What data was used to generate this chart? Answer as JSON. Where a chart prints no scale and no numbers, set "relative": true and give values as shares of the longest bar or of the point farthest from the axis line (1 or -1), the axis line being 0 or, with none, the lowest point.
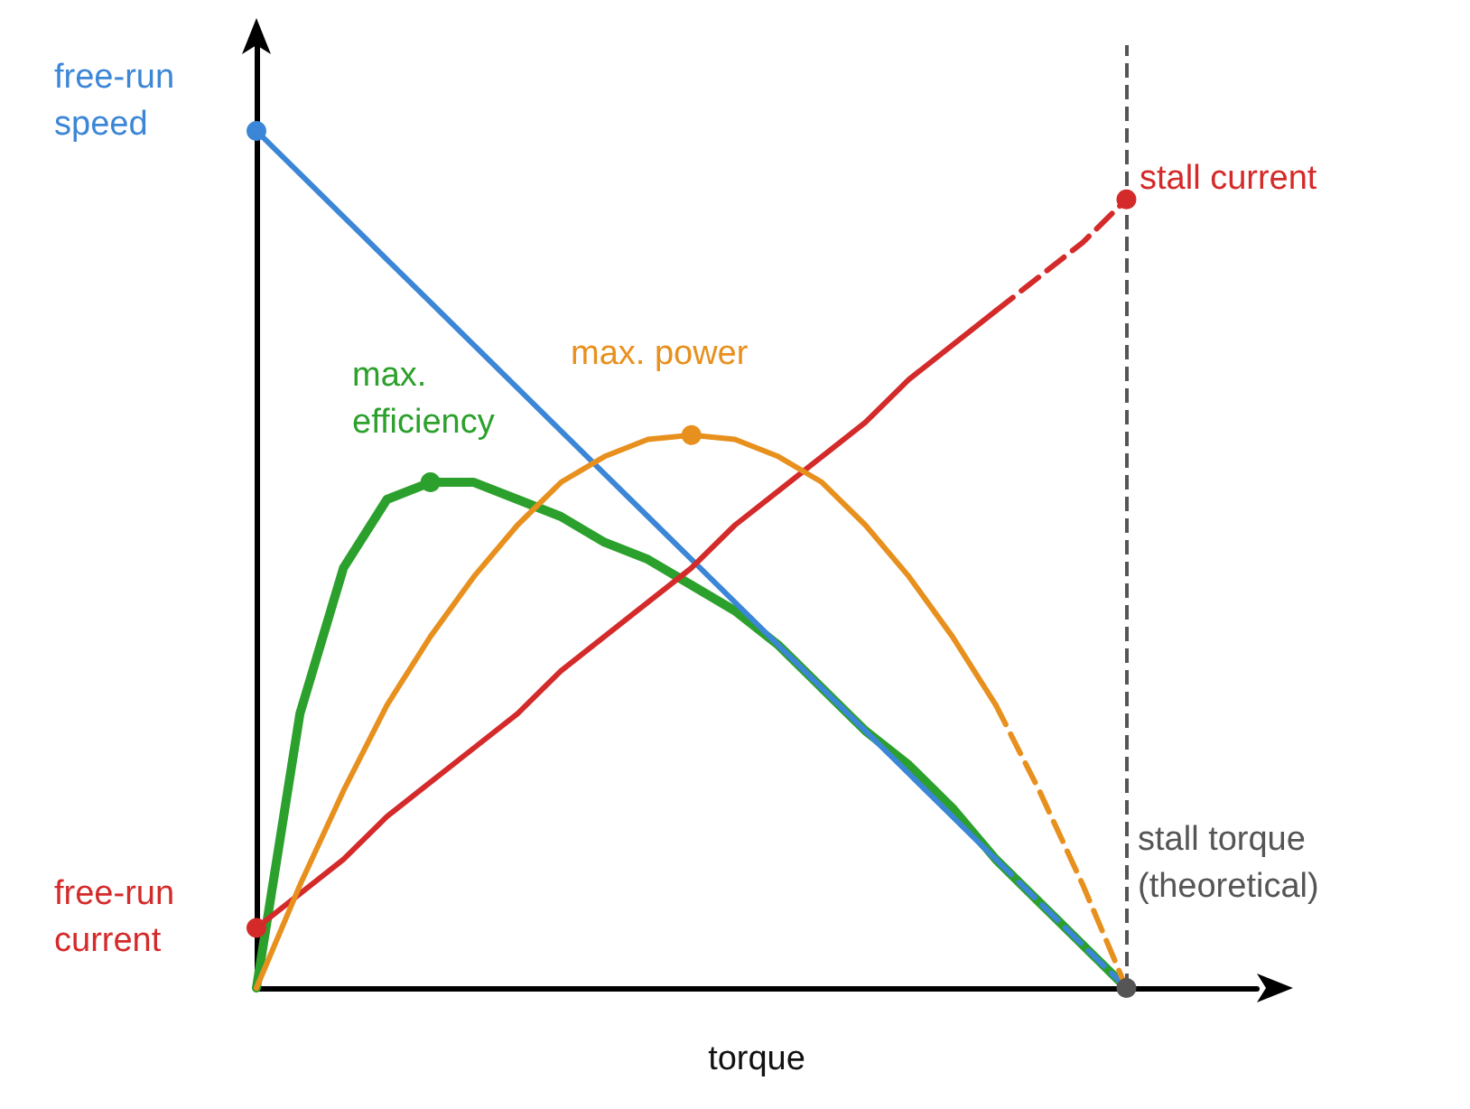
{
  "chart_data": {
    "type": "line",
    "relative": true,
    "xlabel": "torque",
    "grid": false,
    "categories": [
      null,
      null,
      null,
      null,
      null,
      null,
      null,
      null,
      null,
      null,
      null,
      null,
      null,
      null,
      null,
      null,
      null,
      null,
      null,
      null,
      null,
      null,
      null,
      null
    ],
    "series": [
      {
        "color": "#2ca02c",
        "line_style": "solid",
        "values": [
          0,
          0.32,
          0.49,
          0.57,
          0.59,
          0.59,
          0.57,
          0.55,
          0.52,
          0.5,
          0.47,
          0.44,
          0.4,
          0.35,
          0.3,
          0.26,
          0.21,
          0.15,
          0.1,
          0.05,
          0,
          null,
          null,
          null
        ]
      },
      {
        "color": "#3b86d6",
        "line_style": "solid",
        "values": [
          1,
          0.95,
          0.9,
          0.85,
          0.8,
          0.75,
          0.7,
          0.65,
          0.6,
          0.55,
          0.5,
          0.45,
          0.4,
          0.35,
          0.3,
          0.25,
          0.2,
          0.15,
          null,
          null,
          null,
          null,
          null,
          null
        ]
      },
      {
        "color": "#3b86d6",
        "line_style": "dashed",
        "values": [
          null,
          null,
          null,
          null,
          null,
          null,
          null,
          null,
          null,
          null,
          null,
          null,
          null,
          null,
          null,
          null,
          null,
          0.15,
          0.1,
          0.05,
          0,
          null,
          null,
          null
        ]
      },
      {
        "color": "#d42a2a",
        "line_style": "solid",
        "values": [
          0.07,
          0.11,
          0.15,
          0.2,
          0.24,
          0.28,
          0.32,
          0.37,
          0.41,
          0.45,
          0.49,
          0.54,
          0.58,
          0.62,
          0.66,
          0.71,
          0.75,
          0.79,
          null,
          null,
          null,
          null,
          null,
          null
        ]
      },
      {
        "color": "#d42a2a",
        "line_style": "dashed",
        "values": [
          null,
          null,
          null,
          null,
          null,
          null,
          null,
          null,
          null,
          null,
          null,
          null,
          null,
          null,
          null,
          null,
          null,
          0.79,
          0.83,
          0.87,
          0.92,
          null,
          null,
          null
        ]
      },
      {
        "color": "#e8901e",
        "line_style": "solid",
        "values": [
          0,
          0.12,
          0.23,
          0.33,
          0.41,
          0.48,
          0.54,
          0.59,
          0.62,
          0.64,
          0.645,
          0.64,
          0.62,
          0.59,
          0.54,
          0.48,
          0.41,
          0.33,
          null,
          null,
          null,
          null,
          null,
          null
        ]
      },
      {
        "color": "#e8901e",
        "line_style": "dashed",
        "values": [
          null,
          null,
          null,
          null,
          null,
          null,
          null,
          null,
          null,
          null,
          null,
          null,
          null,
          null,
          null,
          null,
          null,
          0.33,
          0.23,
          0.12,
          0,
          null,
          null,
          null
        ]
      }
    ],
    "annotations": [
      "free-run speed",
      "max. efficiency",
      "max. power",
      "stall current",
      "free-run current",
      "stall torque (theoretical)"
    ]
  }
}
